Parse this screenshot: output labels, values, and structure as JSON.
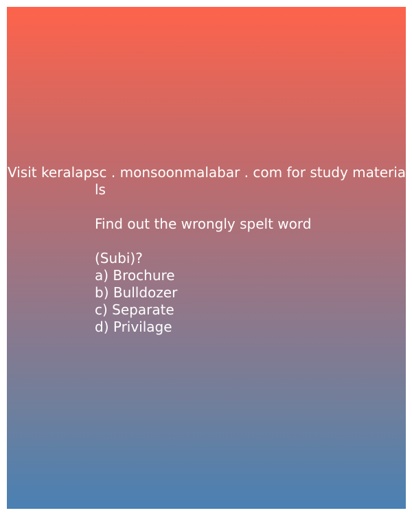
{
  "header": {
    "line1": "Visit keralapsc . monsoonmalabar . com for study materia",
    "line2": "ls"
  },
  "question": {
    "text": " Find out the wrongly spelt word",
    "source": "(Subi)?",
    "options": [
      "a) Brochure",
      "b) Bulldozer",
      "c) Separate",
      "d) Privilage"
    ]
  }
}
